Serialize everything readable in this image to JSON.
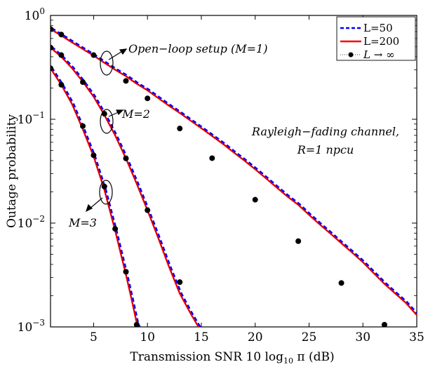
{
  "chart_data": {
    "type": "line",
    "xlabel": "Transmission SNR 10 log",
    "xlabel_sub": "10",
    "xlabel_tail": " π (dB)",
    "ylabel": "Outage probability",
    "xlim": [
      1,
      35
    ],
    "ylim": [
      0.001,
      1
    ],
    "yscale": "log",
    "grid": false,
    "x_ticks": [
      5,
      10,
      15,
      20,
      25,
      30,
      35
    ],
    "y_ticks": [
      {
        "base": "10",
        "exp": "0",
        "value": 1
      },
      {
        "base": "10",
        "exp": "−1",
        "value": 0.1
      },
      {
        "base": "10",
        "exp": "−2",
        "value": 0.01
      },
      {
        "base": "10",
        "exp": "−3",
        "value": 0.001
      }
    ],
    "legend": {
      "position": "top-right",
      "entries": [
        {
          "label": "L=50",
          "color": "#0000ff",
          "style": "dashed"
        },
        {
          "label": "L=200",
          "color": "#ff0000",
          "style": "solid"
        },
        {
          "label": "L → ∞",
          "color": "#000000",
          "style": "markers"
        }
      ]
    },
    "annotations": [
      {
        "text": "Open−loop setup (M=1)"
      },
      {
        "text": "M=2"
      },
      {
        "text": "M=3"
      },
      {
        "text": "Rayleigh−fading channel,"
      },
      {
        "text": "R=1 npcu"
      }
    ],
    "series": [
      {
        "group": "M=1",
        "curve": [
          [
            1,
            0.74
          ],
          [
            2,
            0.64
          ],
          [
            3,
            0.55
          ],
          [
            4,
            0.475
          ],
          [
            5,
            0.41
          ],
          [
            6,
            0.35
          ],
          [
            7,
            0.3
          ],
          [
            8,
            0.26
          ],
          [
            9,
            0.22
          ],
          [
            10,
            0.19
          ],
          [
            11,
            0.16
          ],
          [
            12,
            0.135
          ],
          [
            13,
            0.115
          ],
          [
            14,
            0.097
          ],
          [
            15,
            0.082
          ],
          [
            16,
            0.069
          ],
          [
            17,
            0.058
          ],
          [
            18,
            0.048
          ],
          [
            19,
            0.04
          ],
          [
            20,
            0.033
          ],
          [
            21,
            0.027
          ],
          [
            22,
            0.022
          ],
          [
            23,
            0.018
          ],
          [
            24,
            0.015
          ],
          [
            25,
            0.012
          ],
          [
            26,
            0.0097
          ],
          [
            27,
            0.0079
          ],
          [
            28,
            0.0064
          ],
          [
            29,
            0.0052
          ],
          [
            30,
            0.0042
          ],
          [
            31,
            0.0033
          ],
          [
            32,
            0.0026
          ],
          [
            33,
            0.0021
          ],
          [
            34,
            0.0017
          ],
          [
            35,
            0.0013
          ],
          [
            36,
            0.00105
          ]
        ],
        "markers": [
          [
            1,
            0.74
          ],
          [
            2,
            0.655
          ],
          [
            5,
            0.415
          ],
          [
            8,
            0.234
          ],
          [
            10,
            0.159
          ],
          [
            13,
            0.0815
          ],
          [
            16,
            0.0422
          ],
          [
            20,
            0.0168
          ],
          [
            24,
            0.0067
          ],
          [
            28,
            0.00265
          ],
          [
            32,
            0.00105
          ]
        ]
      },
      {
        "group": "M=2",
        "curve": [
          [
            1,
            0.49
          ],
          [
            2,
            0.4
          ],
          [
            3,
            0.31
          ],
          [
            4,
            0.23
          ],
          [
            5,
            0.165
          ],
          [
            6,
            0.11
          ],
          [
            7,
            0.07
          ],
          [
            8,
            0.042
          ],
          [
            9,
            0.024
          ],
          [
            10,
            0.0133
          ],
          [
            11,
            0.0072
          ],
          [
            12,
            0.0038
          ],
          [
            13,
            0.0021
          ],
          [
            14,
            0.00135
          ],
          [
            15,
            0.0009
          ]
        ],
        "markers": [
          [
            1,
            0.49
          ],
          [
            2,
            0.415
          ],
          [
            4,
            0.228
          ],
          [
            6,
            0.113
          ],
          [
            8,
            0.042
          ],
          [
            10,
            0.0133
          ],
          [
            13,
            0.0027
          ]
        ]
      },
      {
        "group": "M=3",
        "curve": [
          [
            1,
            0.31
          ],
          [
            2,
            0.215
          ],
          [
            3,
            0.14
          ],
          [
            4,
            0.08
          ],
          [
            5,
            0.044
          ],
          [
            6,
            0.021
          ],
          [
            7,
            0.0085
          ],
          [
            7.5,
            0.0052
          ],
          [
            8,
            0.0032
          ],
          [
            8.5,
            0.0019
          ],
          [
            9,
            0.0011
          ],
          [
            9.3,
            0.0009
          ]
        ],
        "markers": [
          [
            1,
            0.31
          ],
          [
            2,
            0.215
          ],
          [
            4,
            0.086
          ],
          [
            5,
            0.045
          ],
          [
            6,
            0.0225
          ],
          [
            7,
            0.0088
          ],
          [
            8,
            0.0034
          ],
          [
            9,
            0.00105
          ]
        ]
      }
    ]
  }
}
